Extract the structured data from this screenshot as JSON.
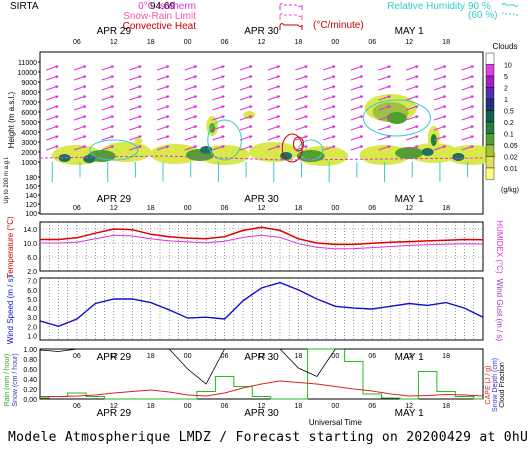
{
  "header": {
    "station": "SIRTA",
    "coord": "94.69",
    "legend_left": [
      {
        "label": "0°C isotherm",
        "color": "#dd33dd"
      },
      {
        "label": "Snow-Rain Limit",
        "color": "#ff55aa"
      },
      {
        "label": "Convective Heat",
        "color": "#cc0000"
      }
    ],
    "conv_unit": "(°C/minute)",
    "rh_label": "Relative Humidity",
    "rh_values": [
      "90 %",
      "(60 %)"
    ],
    "rh_color": "#33cccc"
  },
  "time_axis": {
    "hour_ticks": [
      "06",
      "12",
      "18",
      "00",
      "06",
      "12",
      "18",
      "00",
      "06",
      "12",
      "18"
    ],
    "days": [
      "APR 29",
      "APR 30",
      "MAY  1"
    ],
    "xlabel": "Universal Time"
  },
  "panels": {
    "clouds": {
      "ylabel": "Height  (m a.s.l.)",
      "ylabel2": "Up to 200 m a.g.l.",
      "yticks": [
        "11000",
        "10000",
        "9000",
        "8000",
        "7000",
        "6000",
        "5000",
        "4000",
        "3000",
        "2000",
        "1000",
        "180",
        "160",
        "140",
        "120",
        "100"
      ],
      "colorbar_title": "Clouds",
      "colorbar_unit": "(g/kg)",
      "colorbar_labels": [
        "10",
        "5",
        "2",
        "1",
        "0.5",
        "0.2",
        "0.1",
        "0.05",
        "0.02",
        "0.01"
      ],
      "colorbar_colors": [
        "#ffffff",
        "#e040e0",
        "#a020c0",
        "#5030b0",
        "#203080",
        "#106050",
        "#208040",
        "#50a030",
        "#a0c040",
        "#e0e060",
        "#ffff80"
      ]
    },
    "temperature": {
      "ylabel": "Temperature (°C)",
      "ylabel_right": "HUMIDEX (°C)",
      "yticks": [
        "14.0",
        "10.0",
        "6.0",
        "2.0"
      ],
      "temp_color": "#dd0000",
      "humidex_color": "#dd33dd"
    },
    "wind": {
      "ylabel": "Wind Speed (m / s)",
      "ylabel_right": "Wind Gust (m / s)",
      "yticks": [
        "7.0",
        "6.0",
        "5.0",
        "4.0",
        "3.0",
        "2.0",
        "1.0"
      ],
      "color": "#1010cc"
    },
    "rain": {
      "ylabel_rain": "Rain (mm / hour)",
      "ylabel_snow": "Snow (cm / hour)",
      "ylabel_right": [
        "CAPE (J / g)",
        "Snow Depth (cm)",
        "Cloud Fraction"
      ],
      "yticks": [
        "1.00",
        "0.80",
        "0.60",
        "0.40",
        "0.20",
        "0.00"
      ]
    }
  },
  "chart_data": [
    {
      "type": "line",
      "title": "",
      "x": [
        0,
        3,
        6,
        9,
        12,
        15,
        18,
        21,
        24,
        27,
        30,
        33,
        36,
        39,
        42,
        45,
        48,
        51,
        54,
        57,
        60,
        63,
        66,
        69,
        72
      ],
      "xlabel": "Universal Time",
      "ylabel": "Temperature (°C)",
      "ylim": [
        2,
        16
      ],
      "series": [
        {
          "name": "Temperature",
          "values": [
            11.0,
            11.0,
            11.5,
            12.8,
            14.0,
            13.8,
            12.5,
            11.8,
            11.4,
            11.2,
            11.8,
            13.6,
            14.5,
            13.6,
            11.2,
            10.0,
            9.6,
            9.6,
            9.9,
            10.2,
            10.4,
            10.6,
            10.8,
            11.0,
            10.9
          ]
        },
        {
          "name": "Humidex",
          "values": [
            10.0,
            10.0,
            10.2,
            11.2,
            12.2,
            12.0,
            11.2,
            10.6,
            10.3,
            10.1,
            10.5,
            11.6,
            12.2,
            11.6,
            9.8,
            8.8,
            8.3,
            8.4,
            8.7,
            9.0,
            9.3,
            9.5,
            9.7,
            9.8,
            9.7
          ]
        }
      ]
    },
    {
      "type": "line",
      "title": "",
      "x": [
        0,
        3,
        6,
        9,
        12,
        15,
        18,
        21,
        24,
        27,
        30,
        33,
        36,
        39,
        42,
        45,
        48,
        51,
        54,
        57,
        60,
        63,
        66,
        69,
        72
      ],
      "ylabel": "Wind Speed (m / s)",
      "ylim": [
        1,
        7
      ],
      "series": [
        {
          "name": "Wind Speed",
          "values": [
            2.6,
            2.0,
            2.8,
            4.5,
            5.0,
            5.0,
            4.6,
            3.8,
            2.9,
            3.0,
            2.8,
            4.8,
            6.2,
            6.8,
            6.0,
            5.0,
            4.2,
            4.0,
            3.9,
            4.2,
            4.5,
            4.3,
            4.6,
            4.0,
            3.0
          ]
        }
      ]
    },
    {
      "type": "bar",
      "title": "",
      "x": [
        0,
        3,
        6,
        9,
        12,
        15,
        18,
        21,
        24,
        27,
        30,
        33,
        36,
        39,
        42,
        45,
        48,
        51,
        54,
        57,
        60,
        63,
        66,
        69,
        72
      ],
      "ylabel": "Rain (mm / hour)",
      "ylim": [
        0,
        1.0
      ],
      "series": [
        {
          "name": "Rain",
          "values": [
            0.02,
            0.05,
            0.12,
            0.05,
            0.0,
            0.0,
            0.0,
            0.0,
            0.0,
            0.15,
            0.45,
            0.25,
            0.05,
            0.0,
            0.0,
            1.0,
            1.0,
            0.75,
            0.1,
            0.02,
            0.0,
            0.55,
            0.15,
            0.05,
            0.0
          ]
        },
        {
          "name": "CAPE",
          "values": [
            0.05,
            0.05,
            0.06,
            0.08,
            0.12,
            0.15,
            0.18,
            0.14,
            0.08,
            0.06,
            0.12,
            0.22,
            0.3,
            0.36,
            0.33,
            0.3,
            0.25,
            0.2,
            0.16,
            0.1,
            0.06,
            0.07,
            0.09,
            0.08,
            0.06
          ]
        },
        {
          "name": "Cloud Fraction",
          "values": [
            0.98,
            0.95,
            1.0,
            1.0,
            1.0,
            1.0,
            1.0,
            1.0,
            0.6,
            0.3,
            1.0,
            1.0,
            1.0,
            1.0,
            0.62,
            0.45,
            1.0,
            1.0,
            1.0,
            1.0,
            1.0,
            1.0,
            1.0,
            1.0,
            1.0
          ]
        }
      ]
    }
  ],
  "footer": "Modele Atmospherique LMDZ / Forecast starting on 20200429 at 0hUT"
}
